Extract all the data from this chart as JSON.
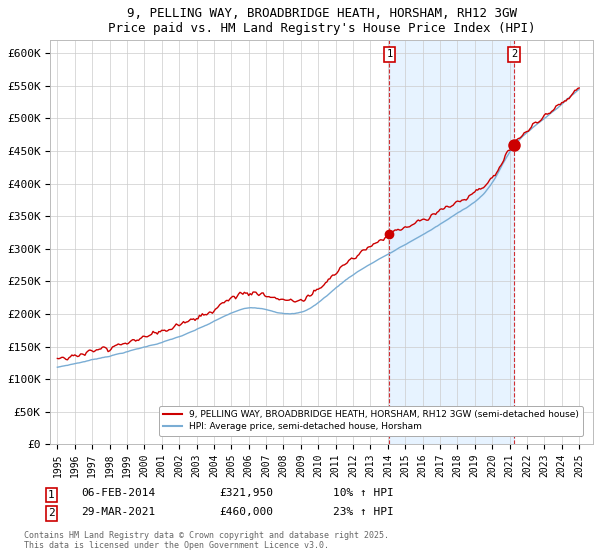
{
  "title_line1": "9, PELLING WAY, BROADBRIDGE HEATH, HORSHAM, RH12 3GW",
  "title_line2": "Price paid vs. HM Land Registry's House Price Index (HPI)",
  "ylim": [
    0,
    620000
  ],
  "yticks": [
    0,
    50000,
    100000,
    150000,
    200000,
    250000,
    300000,
    350000,
    400000,
    450000,
    500000,
    550000,
    600000
  ],
  "ytick_labels": [
    "£0",
    "£50K",
    "£100K",
    "£150K",
    "£200K",
    "£250K",
    "£300K",
    "£350K",
    "£400K",
    "£450K",
    "£500K",
    "£550K",
    "£600K"
  ],
  "legend_entry1": "9, PELLING WAY, BROADBRIDGE HEATH, HORSHAM, RH12 3GW (semi-detached house)",
  "legend_entry2": "HPI: Average price, semi-detached house, Horsham",
  "line1_color": "#cc0000",
  "line2_color": "#7aadd4",
  "fill_color": "#ddeeff",
  "annotation1_year": 2014.09,
  "annotation2_year": 2021.25,
  "annotation1_price": 321950,
  "annotation2_price": 460000,
  "footnote": "Contains HM Land Registry data © Crown copyright and database right 2025.\nThis data is licensed under the Open Government Licence v3.0.",
  "background_color": "#ffffff",
  "grid_color": "#cccccc",
  "xlim_left": 1994.6,
  "xlim_right": 2025.8
}
